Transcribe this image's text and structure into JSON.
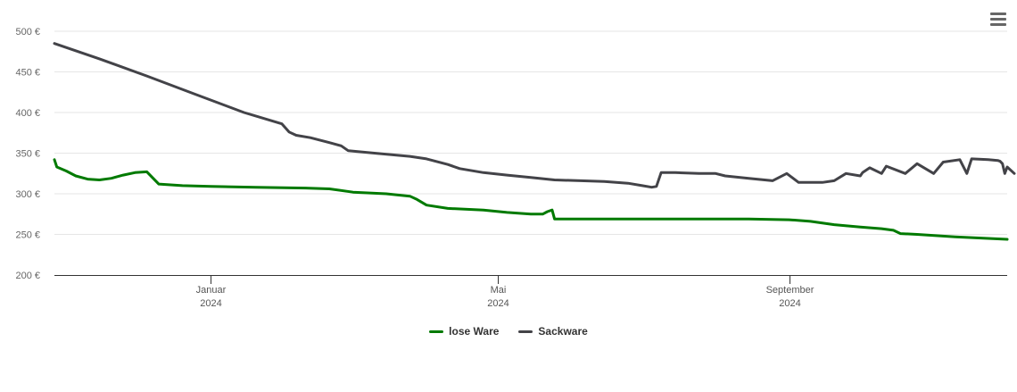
{
  "chart_data": {
    "type": "line",
    "title": "",
    "xlabel": "",
    "ylabel": "",
    "ylim": [
      200,
      500
    ],
    "yticks": [
      200,
      250,
      300,
      350,
      400,
      450,
      500
    ],
    "ytick_labels": [
      "200 €",
      "250 €",
      "300 €",
      "350 €",
      "400 €",
      "450 €",
      "500 €"
    ],
    "xlim": [
      "2023-10-27",
      "2024-12-02"
    ],
    "xticks": [
      {
        "date": "2024-01-01",
        "label": "Januar",
        "year": "2024"
      },
      {
        "date": "2024-05-01",
        "label": "Mai",
        "year": "2024"
      },
      {
        "date": "2024-09-01",
        "label": "September",
        "year": "2024"
      }
    ],
    "grid": true,
    "legend_position": "bottom-center",
    "series": [
      {
        "name": "lose Ware",
        "color": "#007a00",
        "points": [
          [
            "2023-10-27",
            342
          ],
          [
            "2023-10-28",
            333
          ],
          [
            "2023-11-01",
            328
          ],
          [
            "2023-11-05",
            322
          ],
          [
            "2023-11-10",
            318
          ],
          [
            "2023-11-15",
            317
          ],
          [
            "2023-11-20",
            319
          ],
          [
            "2023-11-25",
            323
          ],
          [
            "2023-11-30",
            326
          ],
          [
            "2023-12-05",
            327
          ],
          [
            "2023-12-06",
            324
          ],
          [
            "2023-12-10",
            312
          ],
          [
            "2023-12-20",
            310
          ],
          [
            "2024-01-01",
            309
          ],
          [
            "2024-01-20",
            308
          ],
          [
            "2024-02-10",
            307
          ],
          [
            "2024-02-20",
            306
          ],
          [
            "2024-03-01",
            302
          ],
          [
            "2024-03-15",
            300
          ],
          [
            "2024-03-25",
            297
          ],
          [
            "2024-03-28",
            293
          ],
          [
            "2024-04-01",
            286
          ],
          [
            "2024-04-10",
            282
          ],
          [
            "2024-04-25",
            280
          ],
          [
            "2024-05-05",
            277
          ],
          [
            "2024-05-15",
            275
          ],
          [
            "2024-05-20",
            275
          ],
          [
            "2024-05-22",
            278
          ],
          [
            "2024-05-24",
            280
          ],
          [
            "2024-05-25",
            269
          ],
          [
            "2024-06-15",
            269
          ],
          [
            "2024-07-15",
            269
          ],
          [
            "2024-08-15",
            269
          ],
          [
            "2024-09-01",
            268
          ],
          [
            "2024-09-10",
            266
          ],
          [
            "2024-09-20",
            262
          ],
          [
            "2024-10-01",
            259
          ],
          [
            "2024-10-10",
            257
          ],
          [
            "2024-10-15",
            255
          ],
          [
            "2024-10-18",
            251
          ],
          [
            "2024-10-25",
            250
          ],
          [
            "2024-11-10",
            247
          ],
          [
            "2024-12-02",
            244
          ]
        ]
      },
      {
        "name": "Sackware",
        "color": "#434348",
        "points": [
          [
            "2023-10-27",
            485
          ],
          [
            "2023-11-15",
            466
          ],
          [
            "2023-12-05",
            445
          ],
          [
            "2023-12-25",
            423
          ],
          [
            "2024-01-15",
            400
          ],
          [
            "2024-01-31",
            386
          ],
          [
            "2024-02-03",
            376
          ],
          [
            "2024-02-06",
            372
          ],
          [
            "2024-02-12",
            369
          ],
          [
            "2024-02-20",
            363
          ],
          [
            "2024-02-25",
            359
          ],
          [
            "2024-02-28",
            353
          ],
          [
            "2024-03-10",
            350
          ],
          [
            "2024-03-25",
            346
          ],
          [
            "2024-04-01",
            343
          ],
          [
            "2024-04-10",
            336
          ],
          [
            "2024-04-15",
            331
          ],
          [
            "2024-04-25",
            326
          ],
          [
            "2024-05-05",
            323
          ],
          [
            "2024-05-15",
            320
          ],
          [
            "2024-05-25",
            317
          ],
          [
            "2024-06-05",
            316
          ],
          [
            "2024-06-15",
            315
          ],
          [
            "2024-06-25",
            313
          ],
          [
            "2024-07-01",
            310
          ],
          [
            "2024-07-05",
            308
          ],
          [
            "2024-07-07",
            309
          ],
          [
            "2024-07-09",
            326
          ],
          [
            "2024-07-15",
            326
          ],
          [
            "2024-07-25",
            325
          ],
          [
            "2024-08-05",
            322
          ],
          [
            "2024-08-15",
            319
          ],
          [
            "2024-08-25",
            316
          ],
          [
            "2024-09-05",
            314
          ],
          [
            "2024-09-15",
            314
          ],
          [
            "2024-09-20",
            316
          ],
          [
            "2024-10-01",
            322
          ],
          [
            "2024-10-10",
            325
          ],
          [
            "2024-10-20",
            325
          ],
          [
            "2024-11-01",
            325
          ],
          [
            "2024-11-15",
            325
          ],
          [
            "2024-12-01",
            325
          ],
          [
            "2024-12-05",
            325
          ],
          [
            "2024-08-01",
            325
          ],
          [
            "2024-08-31",
            325
          ],
          [
            "2024-09-25",
            325
          ],
          [
            "2024-10-02",
            326
          ],
          [
            "2024-10-05",
            332
          ],
          [
            "2024-10-12",
            334
          ],
          [
            "2024-10-25",
            337
          ],
          [
            "2024-11-05",
            339
          ],
          [
            "2024-11-12",
            342
          ],
          [
            "2024-11-17",
            343
          ],
          [
            "2024-11-24",
            342
          ],
          [
            "2024-11-28",
            341
          ],
          [
            "2024-11-29",
            340
          ],
          [
            "2024-11-30",
            337
          ],
          [
            "2024-12-02",
            333
          ]
        ]
      }
    ]
  },
  "legend": [
    {
      "label": "lose Ware",
      "color": "#007a00"
    },
    {
      "label": "Sackware",
      "color": "#434348"
    }
  ],
  "menu_icon": "hamburger-menu-icon"
}
